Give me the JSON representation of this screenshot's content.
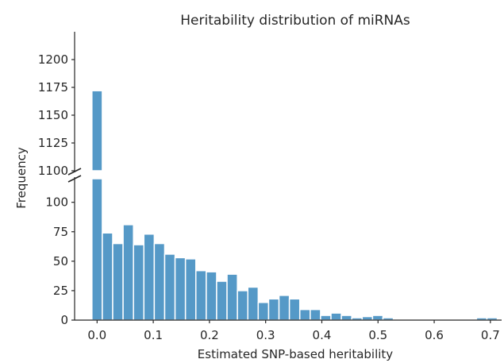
{
  "chart_data": {
    "type": "bar",
    "title": "Heritability distribution of miRNAs",
    "xlabel": "Estimated SNP-based heritability",
    "ylabel": "Frequency",
    "bin_width": 0.0185,
    "x_start": -0.0092,
    "bins_left_edges": [
      -0.0092,
      0.0093,
      0.0278,
      0.0463,
      0.0648,
      0.0833,
      0.1018,
      0.1203,
      0.1388,
      0.1573,
      0.1758,
      0.1943,
      0.2128,
      0.2313,
      0.2498,
      0.2683,
      0.2868,
      0.3053,
      0.3238,
      0.3423,
      0.3608,
      0.3793,
      0.3978,
      0.4163,
      0.4348,
      0.4533,
      0.4718,
      0.4903,
      0.5088,
      0.5273,
      0.5458,
      0.5643,
      0.5828,
      0.6013,
      0.6198,
      0.6383,
      0.6568,
      0.6753,
      0.6938
    ],
    "values": [
      1172,
      74,
      65,
      81,
      64,
      73,
      65,
      56,
      53,
      52,
      42,
      41,
      33,
      39,
      25,
      28,
      15,
      18,
      21,
      18,
      9,
      9,
      4,
      6,
      4,
      2,
      3,
      4,
      2,
      0,
      0,
      0,
      0,
      0,
      0,
      0,
      0,
      2,
      2
    ],
    "x_ticks": [
      "0.0",
      "0.1",
      "0.2",
      "0.3",
      "0.4",
      "0.5",
      "0.6",
      "0.7"
    ],
    "x_tick_values": [
      0.0,
      0.1,
      0.2,
      0.3,
      0.4,
      0.5,
      0.6,
      0.7
    ],
    "xlim": [
      -0.04,
      0.72
    ],
    "y_ticks_lower": [
      "0",
      "25",
      "50",
      "75",
      "100"
    ],
    "y_tick_values_lower": [
      0,
      25,
      50,
      75,
      100
    ],
    "ylim_lower": [
      0,
      120
    ],
    "y_ticks_upper": [
      "1100",
      "1125",
      "1150",
      "1175",
      "1200"
    ],
    "y_tick_values_upper": [
      1100,
      1125,
      1150,
      1175,
      1200
    ],
    "ylim_upper": [
      1100,
      1225
    ],
    "grid": false,
    "bar_color": "#5599c7",
    "broken_y_axis": true
  }
}
